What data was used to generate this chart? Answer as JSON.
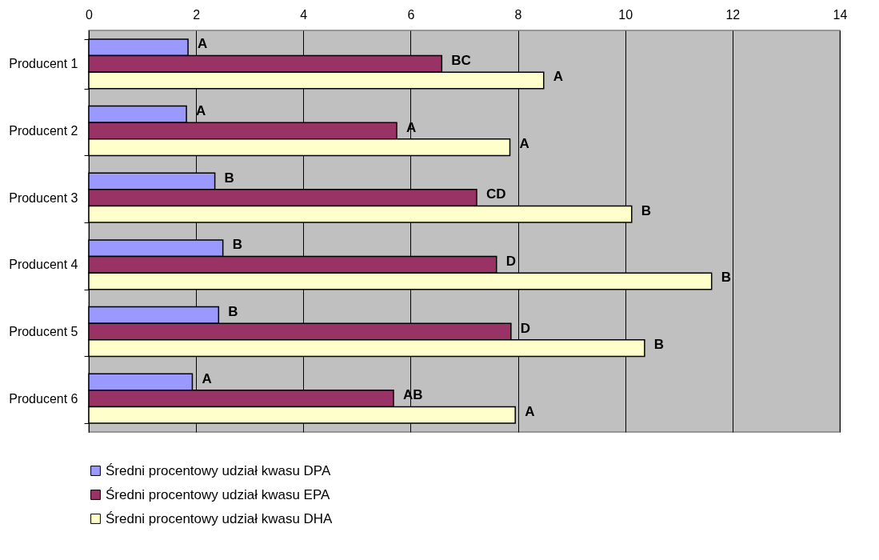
{
  "chart_data": {
    "type": "bar",
    "orientation": "horizontal",
    "categories": [
      "Producent 1",
      "Producent 2",
      "Producent 3",
      "Producent 4",
      "Producent 5",
      "Producent 6"
    ],
    "series": [
      {
        "name": "Średni procentowy udział kwasu DPA",
        "color": "#9999ff",
        "values": [
          1.85,
          1.82,
          2.35,
          2.5,
          2.42,
          1.93
        ],
        "value_labels": [
          "A",
          "A",
          "B",
          "B",
          "B",
          "A"
        ]
      },
      {
        "name": "Średni procentowy udział kwasu EPA",
        "color": "#993366",
        "values": [
          6.58,
          5.74,
          7.23,
          7.6,
          7.87,
          5.68
        ],
        "value_labels": [
          "BC",
          "A",
          "CD",
          "D",
          "D",
          "AB"
        ]
      },
      {
        "name": "Średni procentowy udział kwasu DHA",
        "color": "#ffffcc",
        "values": [
          8.48,
          7.85,
          10.12,
          11.61,
          10.36,
          7.95
        ],
        "value_labels": [
          "A",
          "A",
          "B",
          "B",
          "B",
          "A"
        ]
      }
    ],
    "xlim": [
      0,
      14
    ],
    "xticks": [
      0,
      2,
      4,
      6,
      8,
      10,
      12,
      14
    ],
    "grid": "x",
    "legend": "bottom"
  }
}
